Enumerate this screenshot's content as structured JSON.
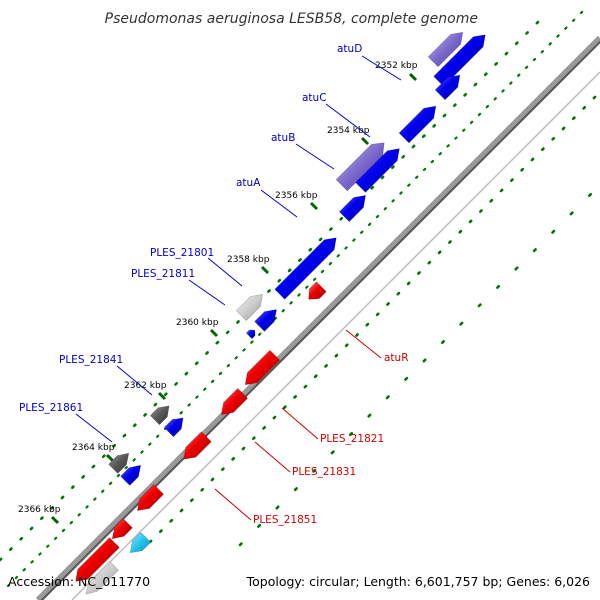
{
  "title": "Pseudomonas aeruginosa LESB58, complete genome",
  "footer": {
    "accession": "Accession: NC_011770",
    "topology": "Topology: circular; Length: 6,601,757 bp; Genes: 6,026"
  },
  "colors": {
    "forward": "#0000ee",
    "reverse": "#ee0000",
    "forward_label": "#0000cc",
    "reverse_label": "#cc0000",
    "backbone": "#888888",
    "gc_dots": "#007700",
    "purple": "#7b68cc",
    "gray": "#555555",
    "light_gray": "#cccccc",
    "cyan": "#22c5ee"
  },
  "ticks": [
    {
      "label": "2352 kbp"
    },
    {
      "label": "2354 kbp"
    },
    {
      "label": "2356 kbp"
    },
    {
      "label": "2358 kbp"
    },
    {
      "label": "2360 kbp"
    },
    {
      "label": "2362 kbp"
    },
    {
      "label": "2364 kbp"
    },
    {
      "label": "2366 kbp"
    }
  ],
  "forward_labels": [
    {
      "name": "atuD"
    },
    {
      "name": "atuC"
    },
    {
      "name": "atuB"
    },
    {
      "name": "atuA"
    },
    {
      "name": "PLES_21801"
    },
    {
      "name": "PLES_21811"
    },
    {
      "name": "PLES_21841"
    },
    {
      "name": "PLES_21861"
    }
  ],
  "reverse_labels": [
    {
      "name": "atuR"
    },
    {
      "name": "PLES_21821"
    },
    {
      "name": "PLES_21831"
    },
    {
      "name": "PLES_21851"
    }
  ]
}
